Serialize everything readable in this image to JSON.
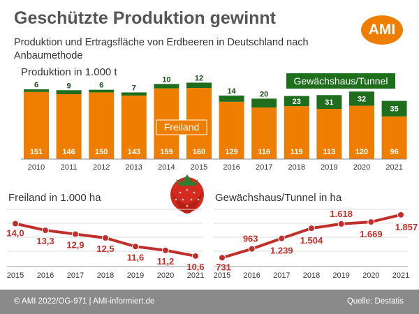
{
  "header": {
    "title": "Geschützte Produktion gewinnt",
    "subtitle": "Produktion und Ertragsfläche von Erdbeeren in Deutschland nach Anbaumethode",
    "logo_text": "AMI"
  },
  "footer": {
    "left": "© AMI 2022/OG-971 | AMI-informiert.de",
    "right": "Quelle: Destatis"
  },
  "colors": {
    "freiland": "#ef7d00",
    "gewaechshaus": "#1e6e1e",
    "line": "#c0302b",
    "label": "#c0302b",
    "footer": "#8a8a8a"
  },
  "chart_data": [
    {
      "type": "bar",
      "title": "Produktion in 1.000 t",
      "categories": [
        "2010",
        "2011",
        "2012",
        "2013",
        "2014",
        "2015",
        "2016",
        "2017",
        "2018",
        "2019",
        "2020",
        "2021"
      ],
      "series": [
        {
          "name": "Freiland",
          "values": [
            151,
            146,
            150,
            143,
            159,
            160,
            129,
            116,
            119,
            113,
            120,
            96
          ]
        },
        {
          "name": "Gewächshaus/Tunnel",
          "values": [
            6,
            9,
            6,
            7,
            10,
            12,
            14,
            20,
            23,
            31,
            32,
            35
          ]
        }
      ],
      "stacked": true,
      "ylim": [
        0,
        175
      ],
      "grid": false
    },
    {
      "type": "line",
      "title": "Freiland in 1.000 ha",
      "x": [
        "2015",
        "2016",
        "2017",
        "2018",
        "2019",
        "2020",
        "2021"
      ],
      "y": [
        14.0,
        13.3,
        12.9,
        12.5,
        11.6,
        11.2,
        10.6
      ],
      "value_labels": [
        "14,0",
        "13,3",
        "12,9",
        "12,5",
        "11,6",
        "11,2",
        "10,6"
      ],
      "ylim": [
        9.5,
        15.5
      ],
      "grid": true
    },
    {
      "type": "line",
      "title": "Gewächshaus/Tunnel in ha",
      "x": [
        "2015",
        "2016",
        "2017",
        "2018",
        "2019",
        "2020",
        "2021"
      ],
      "y": [
        731,
        963,
        1239,
        1504,
        1618,
        1669,
        1857
      ],
      "value_labels": [
        "731",
        "963",
        "1.239",
        "1.504",
        "1.618",
        "1.669",
        "1.857"
      ],
      "ylim": [
        500,
        2000
      ],
      "grid": true
    }
  ]
}
